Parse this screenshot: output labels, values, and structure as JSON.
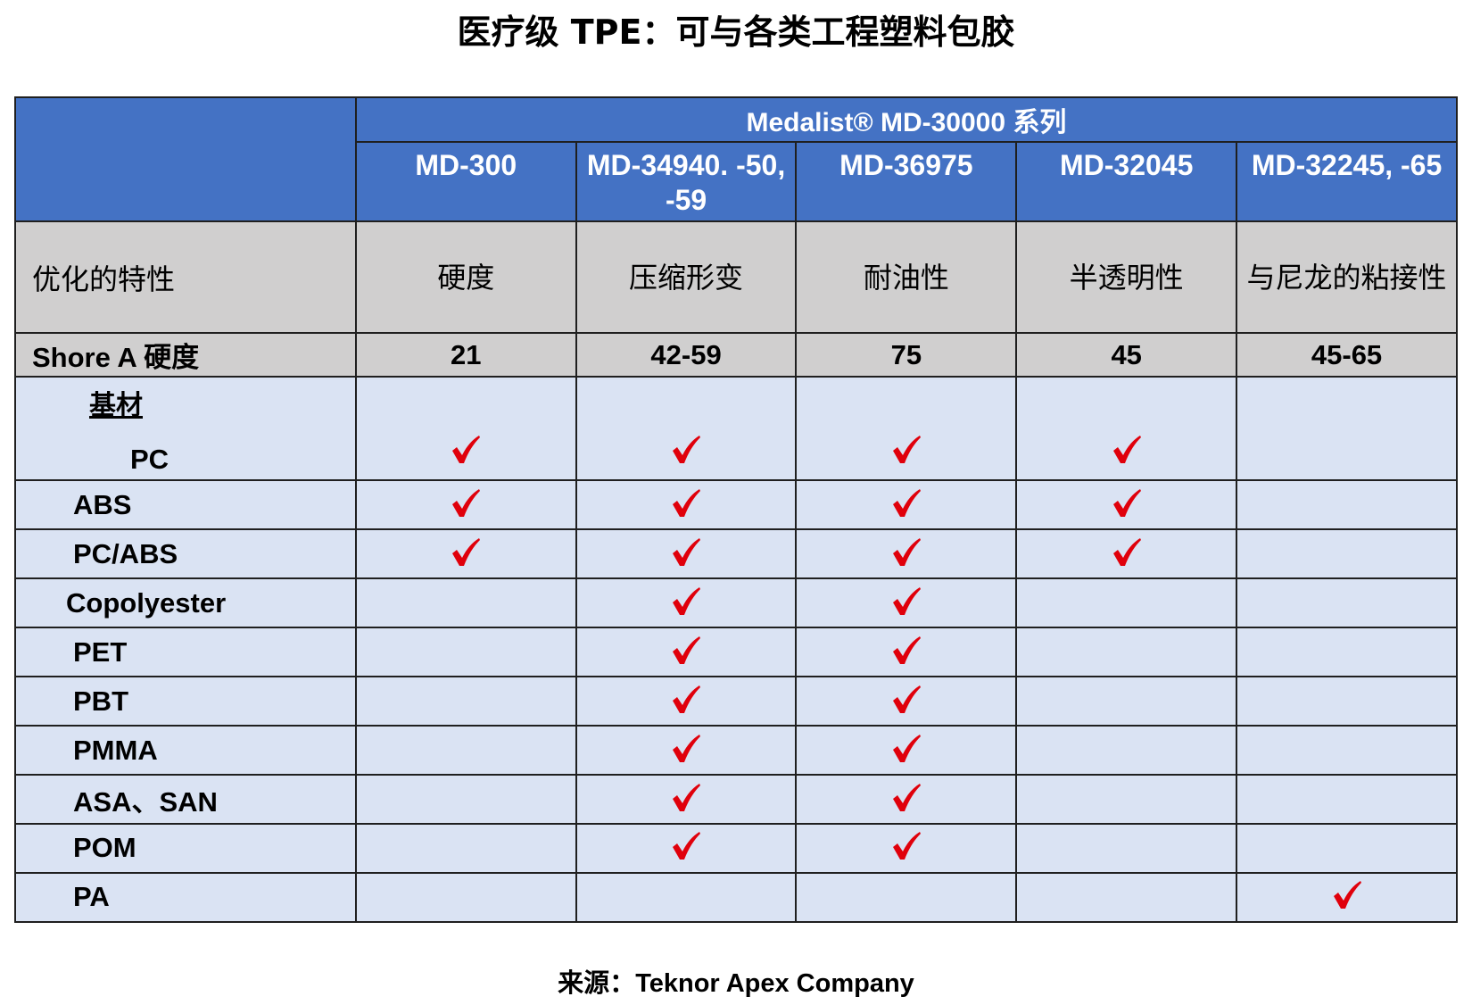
{
  "title": "医疗级 TPE：可与各类工程塑料包胶",
  "table": {
    "series_header": "Medalist® MD-30000 系列",
    "products": [
      "MD-300",
      "MD-34940. -50, -59",
      "MD-36975",
      "MD-32045",
      "MD-32245, -65"
    ],
    "property_label": "优化的特性",
    "properties": [
      "硬度",
      "压缩形变",
      "耐油性",
      "半透明性",
      "与尼龙的粘接性"
    ],
    "hardness_label": "Shore A 硬度",
    "hardness": [
      "21",
      "42-59",
      "75",
      "45",
      "45-65"
    ],
    "substrate_label": "基材",
    "substrates": [
      {
        "name": "PC",
        "checks": [
          true,
          true,
          true,
          true,
          false
        ]
      },
      {
        "name": "ABS",
        "checks": [
          true,
          true,
          true,
          true,
          false
        ]
      },
      {
        "name": "PC/ABS",
        "checks": [
          true,
          true,
          true,
          true,
          false
        ]
      },
      {
        "name": "Copolyester",
        "checks": [
          false,
          true,
          true,
          false,
          false
        ]
      },
      {
        "name": "PET",
        "checks": [
          false,
          true,
          true,
          false,
          false
        ]
      },
      {
        "name": "PBT",
        "checks": [
          false,
          true,
          true,
          false,
          false
        ]
      },
      {
        "name": "PMMA",
        "checks": [
          false,
          true,
          true,
          false,
          false
        ]
      },
      {
        "name": "ASA、SAN",
        "checks": [
          false,
          true,
          true,
          false,
          false
        ]
      },
      {
        "name": "POM",
        "checks": [
          false,
          true,
          true,
          false,
          false
        ]
      },
      {
        "name": "PA",
        "checks": [
          false,
          false,
          false,
          false,
          true
        ]
      }
    ],
    "check_icon": "checkmark-icon",
    "colors": {
      "header_blue": "#4472c4",
      "property_gray": "#d0cfcf",
      "body_light_blue": "#dae3f3",
      "check_red": "#e0000b"
    }
  },
  "footer": {
    "label": "来源：",
    "source": "Teknor Apex Company"
  }
}
